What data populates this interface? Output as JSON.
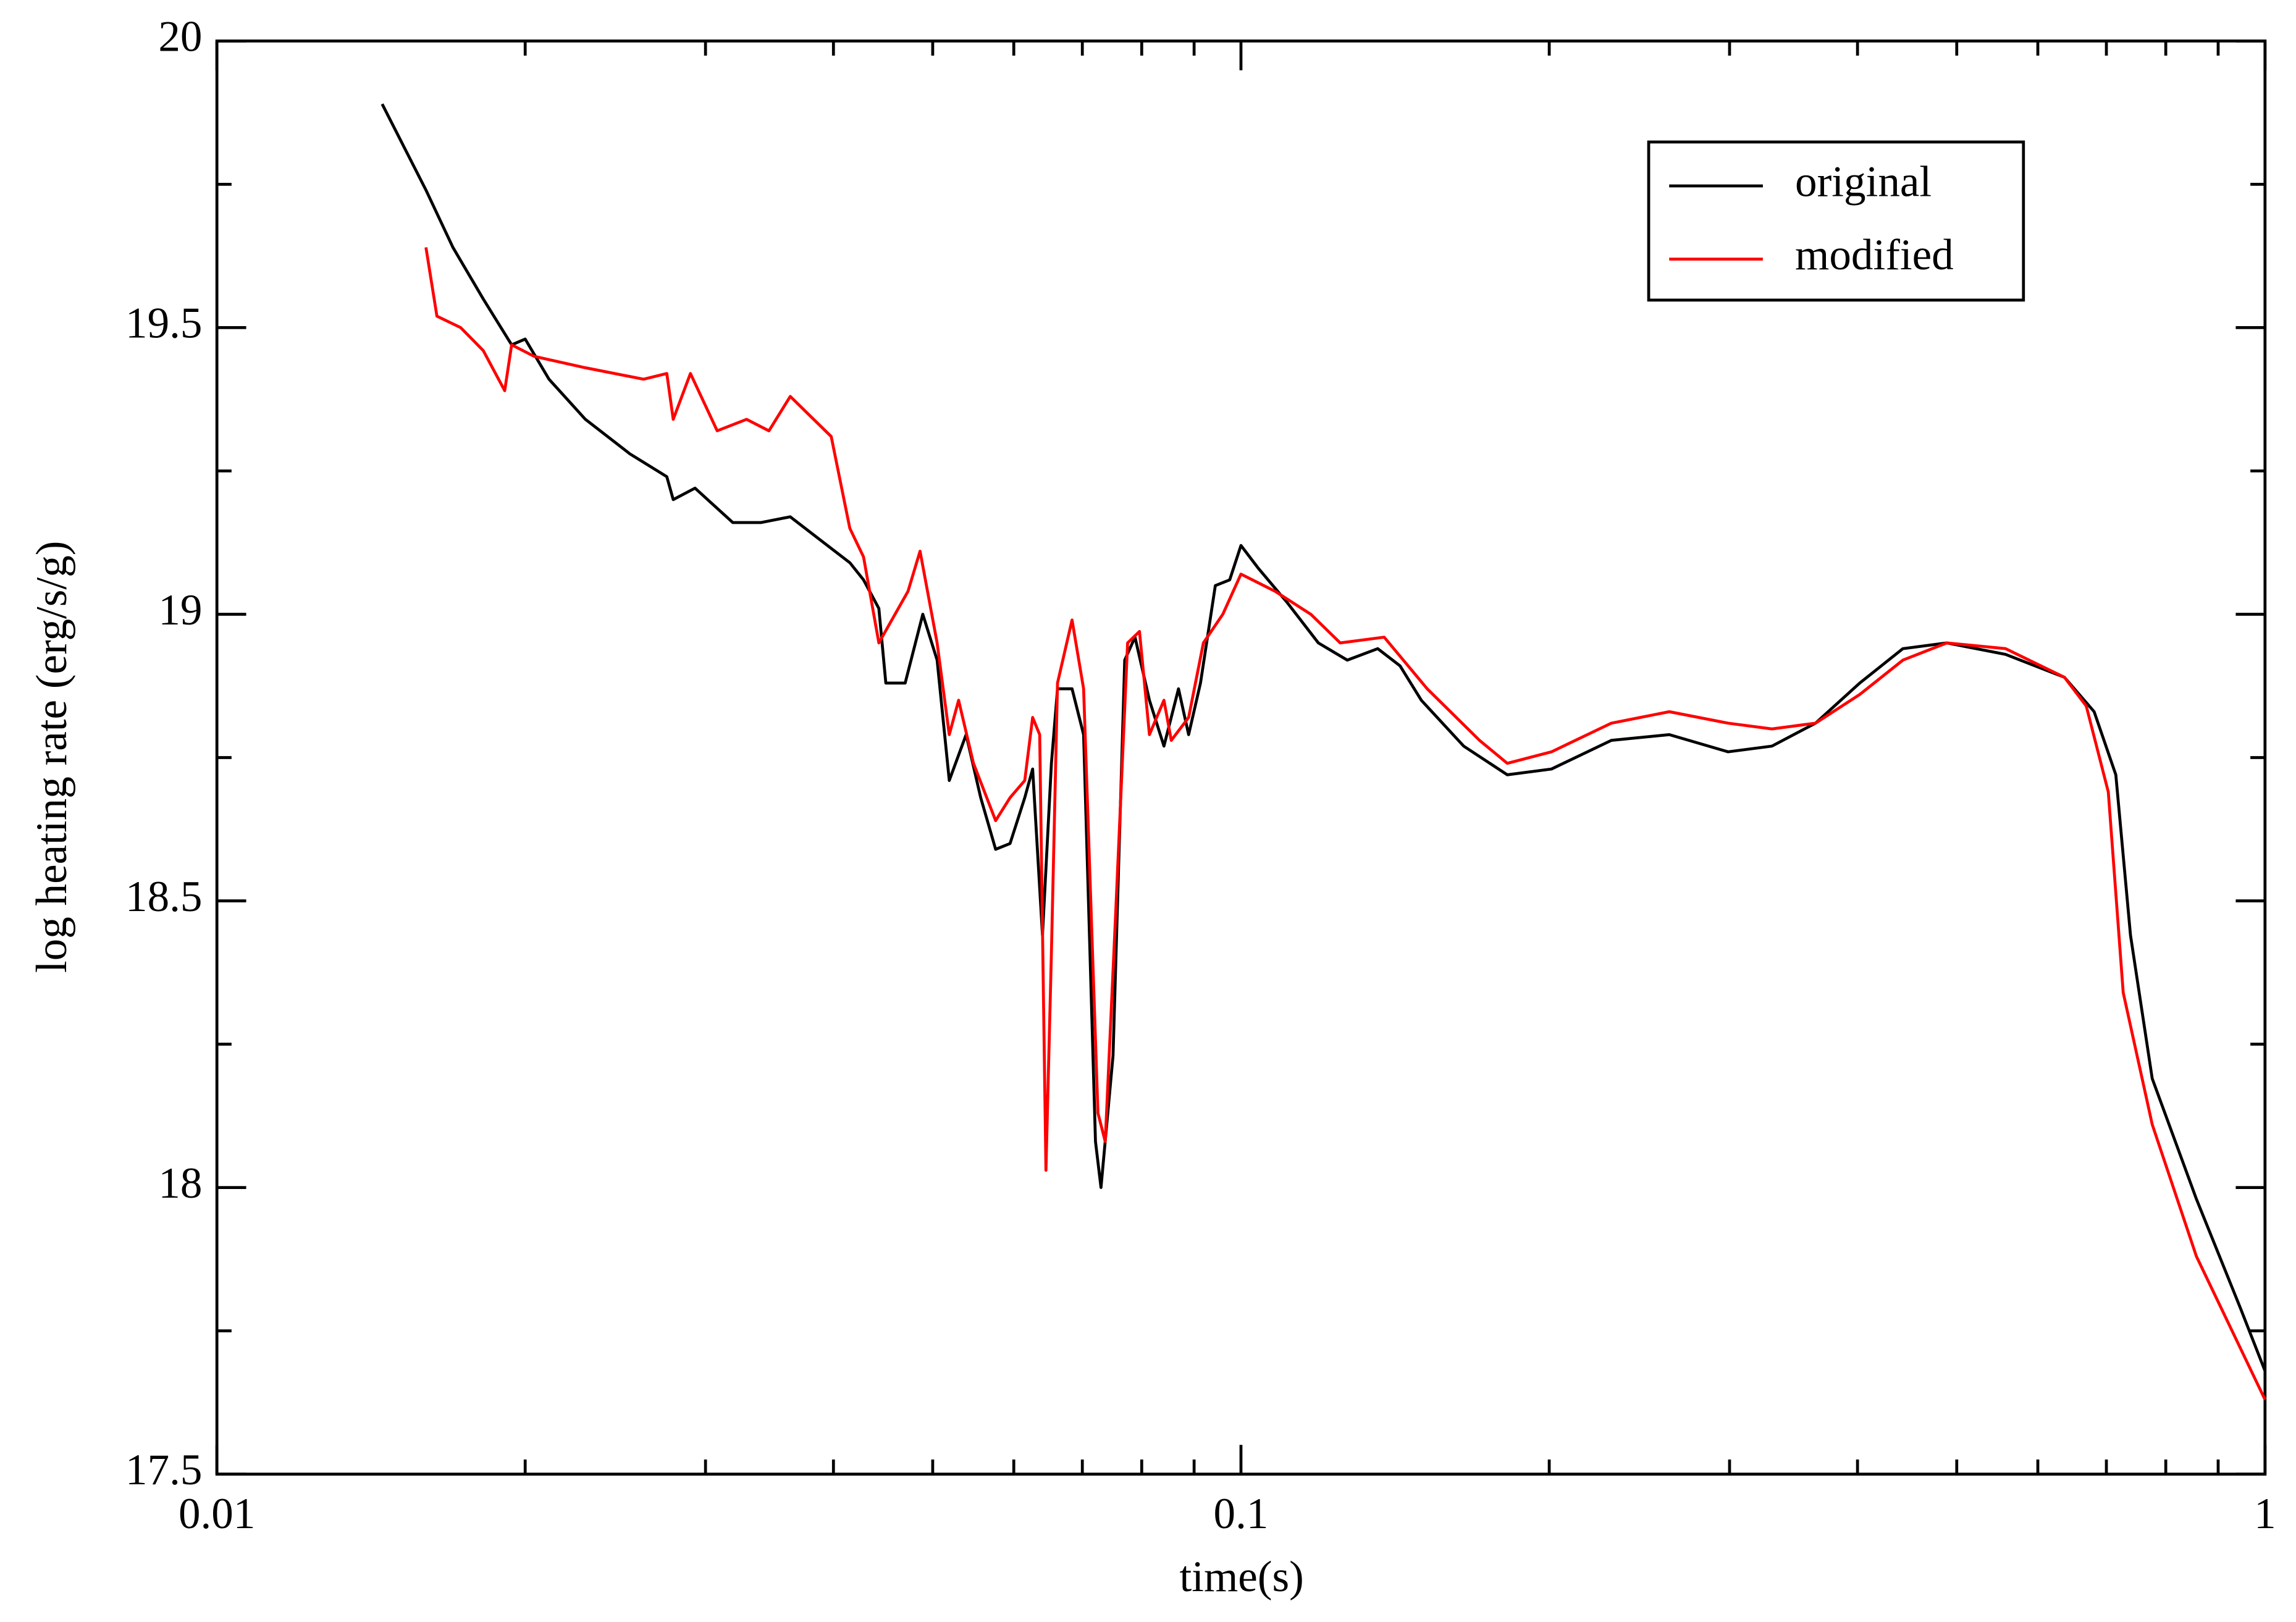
{
  "chart_data": {
    "type": "line",
    "x_label": "time(s)",
    "y_label": "log heating rate  (erg/s/g)",
    "xscale": "log",
    "xlim": [
      0.01,
      1
    ],
    "xticks": [
      0.01,
      0.1,
      1
    ],
    "xminorticks": [
      0.02,
      0.03,
      0.04,
      0.05,
      0.06,
      0.07,
      0.08,
      0.09,
      0.2,
      0.3,
      0.4,
      0.5,
      0.6,
      0.7,
      0.8,
      0.9
    ],
    "ylim": [
      17.5,
      20
    ],
    "yticks": [
      17.5,
      18,
      18.5,
      19,
      19.5,
      20
    ],
    "yminorticks": [
      17.75,
      18.25,
      18.75,
      19.25,
      19.75
    ],
    "legend": "upper right",
    "series": [
      {
        "name": "original",
        "color": "#000000",
        "x": [
          0.0145,
          0.016,
          0.017,
          0.0182,
          0.0194,
          0.02,
          0.0211,
          0.0229,
          0.0253,
          0.0275,
          0.0279,
          0.0293,
          0.0319,
          0.034,
          0.0363,
          0.0388,
          0.0415,
          0.0428,
          0.0443,
          0.045,
          0.047,
          0.0489,
          0.0505,
          0.0519,
          0.0539,
          0.0557,
          0.0576,
          0.0595,
          0.0615,
          0.0626,
          0.064,
          0.0653,
          0.0662,
          0.0684,
          0.0702,
          0.0721,
          0.073,
          0.075,
          0.077,
          0.0788,
          0.0814,
          0.0841,
          0.0869,
          0.0889,
          0.0913,
          0.0944,
          0.0975,
          0.1,
          0.104,
          0.111,
          0.119,
          0.127,
          0.136,
          0.143,
          0.15,
          0.165,
          0.182,
          0.201,
          0.23,
          0.262,
          0.299,
          0.33,
          0.364,
          0.402,
          0.443,
          0.489,
          0.558,
          0.637,
          0.681,
          0.715,
          0.739,
          0.776,
          0.857,
          0.946,
          1.0
        ],
        "values": [
          19.89,
          19.74,
          19.64,
          19.55,
          19.47,
          19.48,
          19.41,
          19.34,
          19.28,
          19.24,
          19.2,
          19.22,
          19.16,
          19.16,
          19.17,
          19.13,
          19.09,
          19.06,
          19.01,
          18.88,
          18.88,
          19.0,
          18.92,
          18.71,
          18.79,
          18.68,
          18.59,
          18.6,
          18.68,
          18.73,
          18.44,
          18.74,
          18.87,
          18.87,
          18.79,
          18.08,
          18.0,
          18.23,
          18.92,
          18.96,
          18.85,
          18.77,
          18.87,
          18.79,
          18.88,
          19.05,
          19.06,
          19.12,
          19.08,
          19.02,
          18.95,
          18.92,
          18.94,
          18.91,
          18.85,
          18.77,
          18.72,
          18.73,
          18.78,
          18.79,
          18.76,
          18.77,
          18.81,
          18.88,
          18.94,
          18.95,
          18.93,
          18.89,
          18.83,
          18.72,
          18.44,
          18.19,
          17.98,
          17.79,
          17.68
        ]
      },
      {
        "name": "modified",
        "color": "#ff0000",
        "x": [
          0.016,
          0.0164,
          0.0173,
          0.0182,
          0.0191,
          0.0194,
          0.0204,
          0.0229,
          0.0261,
          0.0275,
          0.0279,
          0.029,
          0.0308,
          0.0329,
          0.0346,
          0.0363,
          0.0398,
          0.0415,
          0.0428,
          0.0443,
          0.0473,
          0.0486,
          0.0505,
          0.0519,
          0.053,
          0.0548,
          0.0576,
          0.0595,
          0.0615,
          0.0626,
          0.0636,
          0.0645,
          0.0653,
          0.0662,
          0.0684,
          0.0702,
          0.0725,
          0.0737,
          0.0755,
          0.0775,
          0.0796,
          0.0814,
          0.0841,
          0.0855,
          0.0889,
          0.0919,
          0.096,
          0.1,
          0.108,
          0.117,
          0.125,
          0.138,
          0.152,
          0.171,
          0.182,
          0.201,
          0.23,
          0.262,
          0.299,
          0.33,
          0.364,
          0.402,
          0.443,
          0.489,
          0.558,
          0.637,
          0.669,
          0.703,
          0.727,
          0.776,
          0.857,
          1.0
        ],
        "values": [
          19.64,
          19.52,
          19.5,
          19.46,
          19.39,
          19.47,
          19.45,
          19.43,
          19.41,
          19.42,
          19.34,
          19.42,
          19.32,
          19.34,
          19.32,
          19.38,
          19.31,
          19.15,
          19.1,
          18.95,
          19.04,
          19.11,
          18.95,
          18.79,
          18.85,
          18.74,
          18.64,
          18.68,
          18.71,
          18.82,
          18.79,
          18.03,
          18.41,
          18.88,
          18.99,
          18.87,
          18.13,
          18.08,
          18.49,
          18.95,
          18.97,
          18.79,
          18.85,
          18.78,
          18.82,
          18.95,
          19.0,
          19.07,
          19.04,
          19.0,
          18.95,
          18.96,
          18.87,
          18.78,
          18.74,
          18.76,
          18.81,
          18.83,
          18.81,
          18.8,
          18.81,
          18.86,
          18.92,
          18.95,
          18.94,
          18.89,
          18.84,
          18.69,
          18.34,
          18.11,
          17.88,
          17.63
        ]
      }
    ]
  }
}
